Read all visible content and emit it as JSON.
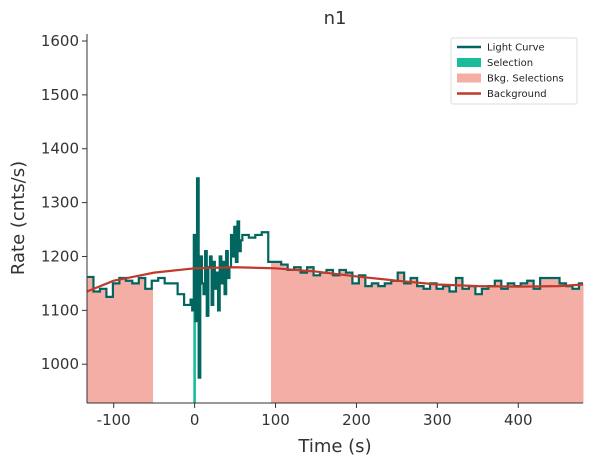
{
  "chart_data": {
    "type": "line",
    "title": "n1",
    "xlabel": "Time (s)",
    "ylabel": "Rate (cnts/s)",
    "xlim": [
      -133,
      480
    ],
    "xticks": [
      -100,
      0,
      100,
      200,
      300,
      400
    ],
    "ylim": [
      928,
      1613
    ],
    "yticks": [
      1000,
      1100,
      1200,
      1300,
      1400,
      1500,
      1600
    ],
    "legend": "upper right",
    "light_curve": {
      "name": "Light Curve",
      "color": "#00665f",
      "bins": [
        -133,
        -125,
        -117,
        -109,
        -101,
        -93,
        -85,
        -77,
        -69,
        -61,
        -53,
        -45,
        -37,
        -29,
        -21,
        -13,
        -5,
        -3,
        -1,
        1,
        3,
        5,
        7,
        9,
        11,
        13,
        15,
        17,
        19,
        21,
        23,
        25,
        27,
        29,
        31,
        33,
        35,
        37,
        39,
        41,
        43,
        45,
        47,
        49,
        51,
        53,
        55,
        57,
        59,
        67,
        75,
        83,
        91,
        99,
        107,
        115,
        123,
        131,
        139,
        147,
        155,
        163,
        171,
        179,
        187,
        195,
        203,
        211,
        219,
        227,
        235,
        243,
        251,
        259,
        267,
        275,
        283,
        291,
        299,
        307,
        315,
        323,
        331,
        339,
        347,
        355,
        363,
        371,
        379,
        387,
        395,
        403,
        411,
        419,
        427,
        435,
        443,
        451,
        459,
        467,
        475,
        480
      ],
      "values": [
        1162,
        1135,
        1140,
        1125,
        1150,
        1160,
        1155,
        1150,
        1160,
        1140,
        1155,
        1160,
        1150,
        1150,
        1130,
        1110,
        1120,
        1100,
        1240,
        1080,
        1345,
        975,
        1200,
        1150,
        1130,
        1210,
        1090,
        1180,
        1200,
        1110,
        1190,
        1140,
        1170,
        1100,
        1200,
        1150,
        1190,
        1130,
        1210,
        1160,
        1180,
        1240,
        1200,
        1255,
        1190,
        1265,
        1210,
        1230,
        1240,
        1235,
        1240,
        1245,
        1190,
        1190,
        1185,
        1175,
        1180,
        1170,
        1180,
        1165,
        1170,
        1175,
        1165,
        1175,
        1170,
        1150,
        1165,
        1145,
        1150,
        1145,
        1150,
        1155,
        1170,
        1150,
        1160,
        1145,
        1140,
        1150,
        1140,
        1145,
        1135,
        1160,
        1140,
        1145,
        1130,
        1140,
        1145,
        1155,
        1140,
        1150,
        1145,
        1150,
        1155,
        1140,
        1160,
        1160,
        1160,
        1150,
        1145,
        1140,
        1150
      ]
    },
    "background": {
      "name": "Background",
      "color": "#c0392b",
      "x": [
        -133,
        -100,
        -50,
        0,
        50,
        100,
        150,
        200,
        250,
        300,
        350,
        400,
        450,
        480
      ],
      "values": [
        1135,
        1155,
        1170,
        1178,
        1180,
        1178,
        1172,
        1163,
        1155,
        1148,
        1145,
        1144,
        1145,
        1148
      ]
    },
    "selection": {
      "name": "Selection",
      "color": "#1abc9c",
      "range": [
        -1,
        1
      ]
    },
    "bkg_selections": {
      "name": "Bkg. Selections",
      "color": "#f4aea5",
      "ranges": [
        [
          -133,
          -52
        ],
        [
          95,
          480
        ]
      ]
    }
  }
}
